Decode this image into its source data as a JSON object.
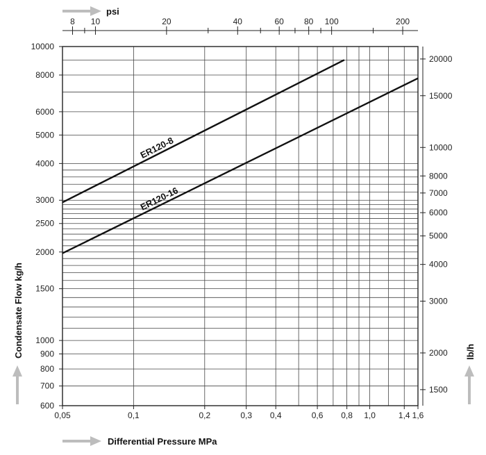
{
  "chart_data": {
    "type": "line",
    "x_scale": "log",
    "y_scale": "log",
    "xlabel": "Differential Pressure MPa",
    "ylabel": "Condensate Flow kg/h",
    "x2label": "psi",
    "y2label": "lb/h",
    "xlim": [
      0.05,
      1.6
    ],
    "ylim": [
      600,
      10000
    ],
    "x_ticks": [
      {
        "v": 0.05,
        "t": "0,05"
      },
      {
        "v": 0.1,
        "t": "0,1"
      },
      {
        "v": 0.2,
        "t": "0,2"
      },
      {
        "v": 0.3,
        "t": "0,3"
      },
      {
        "v": 0.4,
        "t": "0,4"
      },
      {
        "v": 0.6,
        "t": "0,6"
      },
      {
        "v": 0.8,
        "t": "0,8"
      },
      {
        "v": 1.0,
        "t": "1,0"
      },
      {
        "v": 1.4,
        "t": "1,4"
      },
      {
        "v": 1.6,
        "t": "1,6"
      }
    ],
    "x_grid": [
      0.05,
      0.1,
      0.2,
      0.3,
      0.4,
      0.5,
      0.6,
      0.7,
      0.8,
      0.9,
      1.0,
      1.2,
      1.4,
      1.6
    ],
    "x2_ticks": [
      {
        "v": 8,
        "t": "8"
      },
      {
        "v": 10,
        "t": "10"
      },
      {
        "v": 20,
        "t": "20"
      },
      {
        "v": 40,
        "t": "40"
      },
      {
        "v": 60,
        "t": "60"
      },
      {
        "v": 80,
        "t": "80"
      },
      {
        "v": 100,
        "t": "100"
      },
      {
        "v": 200,
        "t": "200"
      }
    ],
    "x2_minor": [
      9,
      30,
      50,
      70,
      90,
      150
    ],
    "y_ticks": [
      {
        "v": 600,
        "t": "600"
      },
      {
        "v": 700,
        "t": "700"
      },
      {
        "v": 800,
        "t": "800"
      },
      {
        "v": 900,
        "t": "900"
      },
      {
        "v": 1000,
        "t": "1000"
      },
      {
        "v": 1500,
        "t": "1500"
      },
      {
        "v": 2000,
        "t": "2000"
      },
      {
        "v": 2500,
        "t": "2500"
      },
      {
        "v": 3000,
        "t": "3000"
      },
      {
        "v": 4000,
        "t": "4000"
      },
      {
        "v": 5000,
        "t": "5000"
      },
      {
        "v": 6000,
        "t": "6000"
      },
      {
        "v": 8000,
        "t": "8000"
      },
      {
        "v": 10000,
        "t": "10000"
      }
    ],
    "y_grid": [
      600,
      700,
      800,
      900,
      1000,
      1100,
      1200,
      1300,
      1400,
      1500,
      1600,
      1700,
      1800,
      1900,
      2000,
      2100,
      2200,
      2300,
      2400,
      2500,
      2600,
      2700,
      2800,
      2900,
      3000,
      3200,
      3400,
      3600,
      3800,
      4000,
      5000,
      6000,
      7000,
      8000,
      9000,
      10000
    ],
    "y2_ticks": [
      {
        "v": 1500,
        "t": "1500"
      },
      {
        "v": 2000,
        "t": "2000"
      },
      {
        "v": 3000,
        "t": "3000"
      },
      {
        "v": 4000,
        "t": "4000"
      },
      {
        "v": 5000,
        "t": "5000"
      },
      {
        "v": 6000,
        "t": "6000"
      },
      {
        "v": 7000,
        "t": "7000"
      },
      {
        "v": 8000,
        "t": "8000"
      },
      {
        "v": 10000,
        "t": "10000"
      },
      {
        "v": 15000,
        "t": "15000"
      },
      {
        "v": 20000,
        "t": "20000"
      }
    ],
    "series": [
      {
        "name": "ER120-8",
        "x": [
          0.05,
          0.78
        ],
        "y": [
          2950,
          9000
        ]
      },
      {
        "name": "ER120-16",
        "x": [
          0.05,
          1.6
        ],
        "y": [
          1980,
          7800
        ]
      }
    ],
    "grid": true
  }
}
